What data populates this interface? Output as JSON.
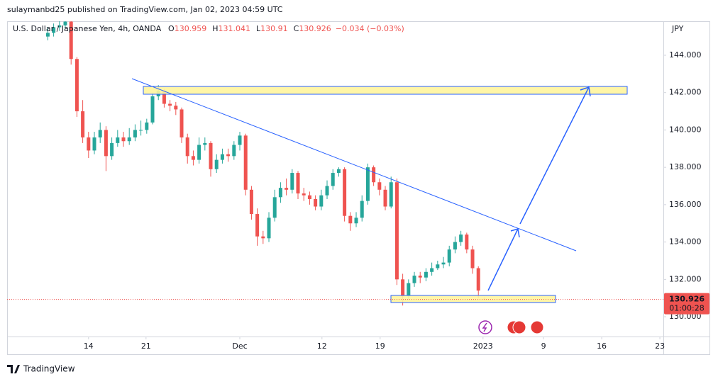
{
  "chart_data": {
    "type": "candlestick",
    "published": "sulaymanbd25 published on TradingView.com, Jan 02, 2023 04:59 UTC",
    "title": "U.S. Dollar / Japanese Yen, 4h, OANDA",
    "ohlc_labels": [
      "O",
      "H",
      "L",
      "C"
    ],
    "change": "−0.034 (−0.03%)",
    "y_axis_label": "JPY",
    "countdown": "01:00:28",
    "brand": "TradingView",
    "up_color": "#26a69a",
    "down_color": "#ef5350",
    "grid": false,
    "xlim": [
      -7,
      49.4
    ],
    "xticks": [
      {
        "value": 0,
        "label": "14"
      },
      {
        "value": 4.94,
        "label": "21"
      },
      {
        "value": 13,
        "label": "Dec"
      },
      {
        "value": 20.06,
        "label": "12"
      },
      {
        "value": 25.06,
        "label": "19"
      },
      {
        "value": 33.9,
        "label": "2023"
      },
      {
        "value": 39.1,
        "label": "9"
      },
      {
        "value": 44.1,
        "label": "16"
      },
      {
        "value": 49.1,
        "label": "23"
      }
    ],
    "ylim": [
      128.94,
      145.82
    ],
    "yticks": [
      {
        "value": 130,
        "label": "130.000"
      },
      {
        "value": 132,
        "label": "132.000"
      },
      {
        "value": 134,
        "label": "134.000"
      },
      {
        "value": 136,
        "label": "136.000"
      },
      {
        "value": 138,
        "label": "138.000"
      },
      {
        "value": 140,
        "label": "140.000"
      },
      {
        "value": 142,
        "label": "142.000"
      },
      {
        "value": 144,
        "label": "144.000"
      }
    ],
    "x": [
      -3.5,
      -3,
      -2.5,
      -2,
      -1.5,
      -1,
      -0.5,
      0,
      0.5,
      1,
      1.5,
      2,
      2.5,
      3,
      3.5,
      4,
      4.5,
      5,
      5.5,
      6,
      6.5,
      7,
      7.5,
      8,
      8.5,
      9,
      9.5,
      10,
      10.5,
      11,
      11.5,
      12,
      12.5,
      13,
      13.5,
      14,
      14.5,
      15,
      15.5,
      16,
      16.5,
      17,
      17.5,
      18,
      18.5,
      19,
      19.5,
      20,
      20.5,
      21,
      21.5,
      22,
      22.5,
      23,
      23.5,
      24,
      24.5,
      25,
      25.5,
      26,
      26.5,
      27,
      27.5,
      28,
      28.5,
      29,
      29.5,
      30,
      30.5,
      31,
      31.5,
      32,
      32.5,
      33,
      33.5,
      34
    ],
    "open": [
      145.0,
      145.2,
      145.5,
      145.6,
      145.8,
      143.8,
      141.0,
      139.6,
      138.9,
      139.6,
      140.0,
      138.6,
      139.3,
      139.6,
      139.4,
      139.6,
      140.0,
      140.0,
      140.4,
      141.8,
      142.1,
      141.4,
      141.3,
      141.1,
      139.6,
      138.6,
      138.4,
      139.2,
      139.3,
      137.9,
      138.4,
      138.7,
      138.6,
      139.2,
      139.7,
      136.8,
      135.5,
      134.3,
      134.2,
      135.3,
      136.4,
      136.9,
      136.8,
      137.7,
      136.6,
      136.5,
      136.3,
      135.9,
      136.5,
      137.0,
      137.7,
      137.9,
      135.4,
      135.0,
      135.3,
      136.2,
      138.0,
      137.2,
      136.8,
      135.9,
      137.2,
      132.0,
      131.1,
      131.8,
      132.2,
      132.1,
      132.4,
      132.6,
      132.8,
      132.9,
      133.6,
      134.0,
      134.4,
      133.6,
      132.6,
      130.959
    ],
    "high": [
      145.5,
      145.7,
      145.9,
      146.0,
      145.9,
      143.9,
      141.6,
      139.9,
      139.9,
      140.4,
      140.2,
      139.6,
      140.0,
      139.9,
      140.1,
      140.3,
      140.5,
      140.6,
      142.0,
      142.4,
      142.2,
      141.6,
      141.5,
      141.2,
      139.8,
      138.9,
      139.6,
      139.6,
      139.4,
      138.7,
      139.0,
      139.0,
      139.4,
      139.9,
      139.8,
      137.0,
      135.8,
      134.6,
      135.6,
      136.8,
      137.2,
      137.4,
      137.9,
      137.8,
      136.9,
      136.7,
      136.5,
      136.8,
      137.3,
      137.9,
      138.0,
      138.0,
      135.6,
      135.6,
      136.5,
      138.2,
      138.1,
      137.4,
      137.0,
      137.5,
      137.4,
      132.3,
      132.0,
      132.4,
      132.4,
      132.6,
      132.9,
      133.0,
      133.2,
      133.8,
      134.3,
      134.6,
      134.5,
      133.8,
      132.7,
      131.041
    ],
    "low": [
      144.8,
      145.0,
      145.3,
      145.4,
      143.5,
      140.7,
      139.3,
      138.5,
      138.7,
      139.3,
      137.8,
      138.4,
      139.1,
      139.1,
      139.2,
      139.4,
      139.7,
      139.8,
      140.3,
      141.6,
      141.2,
      141.0,
      140.8,
      139.3,
      138.2,
      138.1,
      138.2,
      138.9,
      137.5,
      137.7,
      138.2,
      138.3,
      138.4,
      138.9,
      136.5,
      135.2,
      133.8,
      133.9,
      134.0,
      135.1,
      136.1,
      136.5,
      136.6,
      136.3,
      136.2,
      136.0,
      135.7,
      135.7,
      136.3,
      136.8,
      137.5,
      135.1,
      134.6,
      134.8,
      135.1,
      136.0,
      137.0,
      136.5,
      135.7,
      135.8,
      131.7,
      130.6,
      130.9,
      131.6,
      131.8,
      131.9,
      132.2,
      132.5,
      132.6,
      132.7,
      133.4,
      133.8,
      133.4,
      132.3,
      131.0,
      130.91
    ],
    "close": [
      145.2,
      145.5,
      145.6,
      145.8,
      143.8,
      141.0,
      139.6,
      138.9,
      139.6,
      140.0,
      138.6,
      139.3,
      139.6,
      139.4,
      139.6,
      140.0,
      140.0,
      140.4,
      141.8,
      142.1,
      141.4,
      141.3,
      141.1,
      139.6,
      138.6,
      138.4,
      139.2,
      139.3,
      137.9,
      138.4,
      138.7,
      138.6,
      139.2,
      139.7,
      136.8,
      135.5,
      134.3,
      134.2,
      135.3,
      136.4,
      136.9,
      136.8,
      137.7,
      136.6,
      136.5,
      136.3,
      135.9,
      136.5,
      137.0,
      137.7,
      137.9,
      135.4,
      135.0,
      135.3,
      136.2,
      138.0,
      137.2,
      136.8,
      135.9,
      137.2,
      132.0,
      131.1,
      131.8,
      132.2,
      132.1,
      132.4,
      132.6,
      132.8,
      132.9,
      133.6,
      134.0,
      134.4,
      133.6,
      132.6,
      131.4,
      130.926
    ]
  }
}
